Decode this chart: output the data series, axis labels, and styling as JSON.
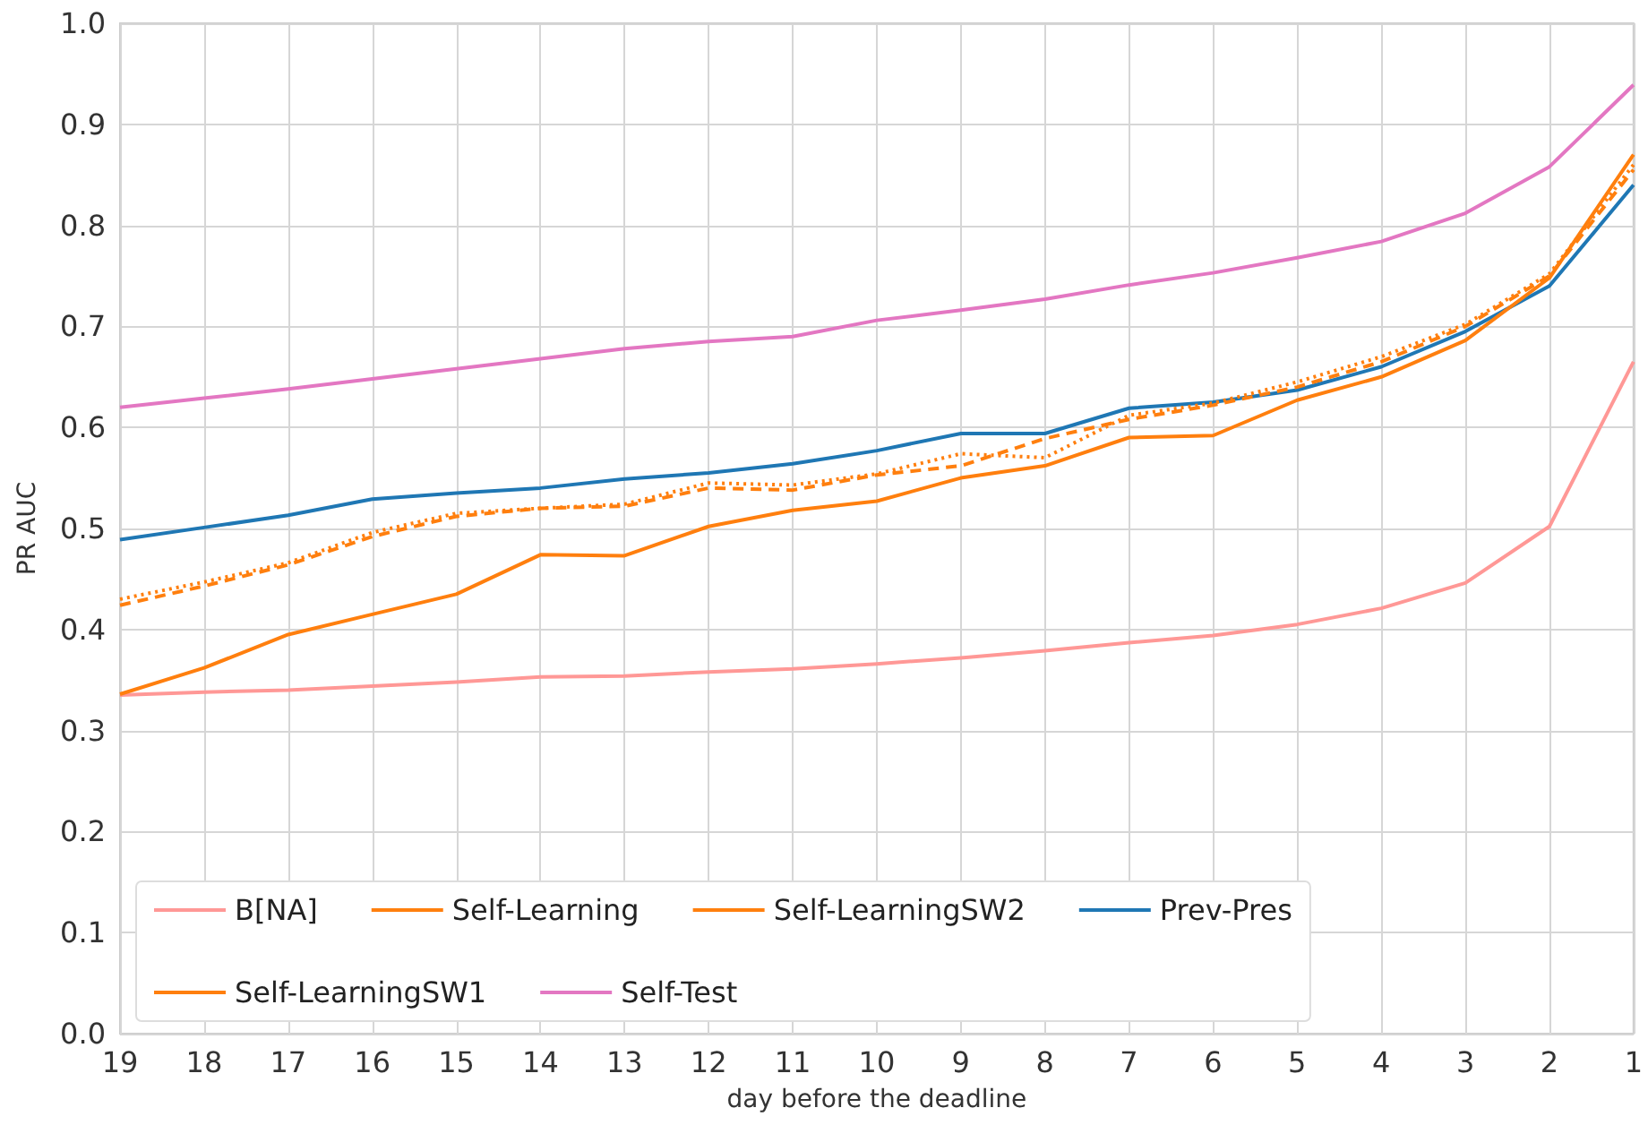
{
  "chart_data": {
    "type": "line",
    "xlabel": "day before the deadline",
    "ylabel": "PR AUC",
    "x": [
      19,
      18,
      17,
      16,
      15,
      14,
      13,
      12,
      11,
      10,
      9,
      8,
      7,
      6,
      5,
      4,
      3,
      2,
      1
    ],
    "xlim": [
      19,
      1
    ],
    "xticks": [
      19,
      18,
      17,
      16,
      15,
      14,
      13,
      12,
      11,
      10,
      9,
      8,
      7,
      6,
      5,
      4,
      3,
      2,
      1
    ],
    "ylim": [
      0,
      1
    ],
    "yticks": [
      {
        "value": 0,
        "label": "0.0"
      },
      0.1,
      0.2,
      0.3,
      0.4,
      0.5,
      0.6,
      0.7,
      0.8,
      0.9,
      {
        "value": 1,
        "label": "1.0"
      }
    ],
    "grid": true,
    "legend": "bottom left",
    "marker": "none",
    "series": [
      {
        "name": "B[NA]",
        "color": "#ff9896",
        "line_style": "solid",
        "values": [
          0.335,
          0.338,
          0.34,
          0.344,
          0.348,
          0.353,
          0.354,
          0.358,
          0.361,
          0.366,
          0.372,
          0.379,
          0.387,
          0.394,
          0.405,
          0.421,
          0.446,
          0.502,
          0.665
        ]
      },
      {
        "name": "Prev-Pres",
        "color": "#1f77b4",
        "line_style": "solid",
        "values": [
          0.489,
          0.501,
          0.513,
          0.529,
          0.535,
          0.54,
          0.549,
          0.555,
          0.564,
          0.577,
          0.594,
          0.594,
          0.619,
          0.625,
          0.637,
          0.66,
          0.695,
          0.74,
          0.84
        ]
      },
      {
        "name": "Self-Learning",
        "color": "#ff7f0e",
        "line_style": "solid",
        "values": [
          0.336,
          0.362,
          0.395,
          0.415,
          0.435,
          0.474,
          0.473,
          0.502,
          0.518,
          0.527,
          0.55,
          0.562,
          0.59,
          0.592,
          0.627,
          0.65,
          0.686,
          0.748,
          0.87
        ]
      },
      {
        "name": "Self-LearningSW1",
        "color": "#ff7f0e",
        "line_style": "dashed",
        "values": [
          0.424,
          0.443,
          0.464,
          0.492,
          0.512,
          0.52,
          0.522,
          0.54,
          0.538,
          0.553,
          0.562,
          0.589,
          0.608,
          0.622,
          0.64,
          0.665,
          0.7,
          0.75,
          0.855
        ]
      },
      {
        "name": "Self-LearningSW2",
        "color": "#ff7f0e",
        "line_style": "dotted",
        "values": [
          0.43,
          0.447,
          0.466,
          0.496,
          0.515,
          0.52,
          0.524,
          0.545,
          0.543,
          0.554,
          0.574,
          0.57,
          0.612,
          0.624,
          0.645,
          0.67,
          0.702,
          0.752,
          0.86
        ]
      },
      {
        "name": "Self-Test",
        "color": "#e377c2",
        "line_style": "solid",
        "values": [
          0.62,
          0.629,
          0.638,
          0.648,
          0.658,
          0.668,
          0.678,
          0.685,
          0.69,
          0.706,
          0.716,
          0.727,
          0.741,
          0.753,
          0.768,
          0.784,
          0.812,
          0.858,
          0.939
        ]
      }
    ]
  }
}
